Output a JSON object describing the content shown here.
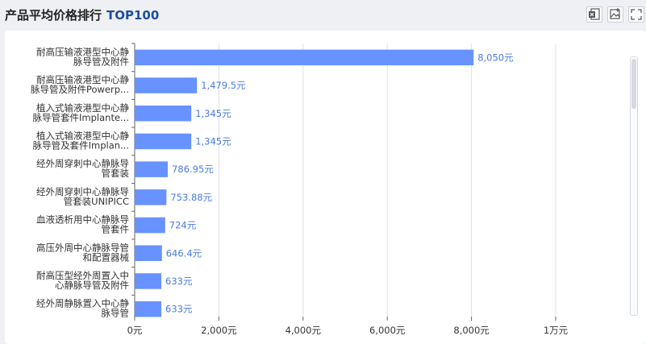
{
  "header": {
    "title": "产品平均价格排行",
    "badge": "TOP100"
  },
  "toolbar": {
    "icons": [
      "excel-export-icon",
      "image-export-icon",
      "fullscreen-icon"
    ]
  },
  "colors": {
    "bar": "#6792ff",
    "value_label": "#4a7be0",
    "grid": "#dde1e8"
  },
  "chart_data": {
    "type": "bar",
    "orientation": "horizontal",
    "title": "产品平均价格排行 TOP100",
    "categories": [
      [
        "耐高压输液港型中心静",
        "脉导管及附件"
      ],
      [
        "耐高压输液港型中心静",
        "脉导管及附件Powerp..."
      ],
      [
        "植入式输液港型中心静",
        "脉导管套件Implante..."
      ],
      [
        "植入式输液港型中心静",
        "脉导管及套件Implan..."
      ],
      [
        "经外周穿刺中心静脉导",
        "管套装"
      ],
      [
        "经外周穿刺中心静脉导",
        "管套装UNIPICC"
      ],
      [
        "血液透析用中心静脉导",
        "管套件"
      ],
      [
        "高压外周中心静脉导管",
        "和配置器械"
      ],
      [
        "耐高压型经外周置入中",
        "心静脉导管及附件"
      ],
      [
        "经外周静脉置入中心静",
        "脉导管"
      ]
    ],
    "values": [
      8050,
      1479.5,
      1345,
      1345,
      786.95,
      753.88,
      724,
      646.4,
      633,
      633
    ],
    "value_labels": [
      "8,050元",
      "1,479.5元",
      "1,345元",
      "1,345元",
      "786.95元",
      "753.88元",
      "724元",
      "646.4元",
      "633元",
      "633元"
    ],
    "x_ticks": [
      0,
      2000,
      4000,
      6000,
      8000,
      10000
    ],
    "x_tick_labels": [
      "0元",
      "2,000元",
      "4,000元",
      "6,000元",
      "8,000元",
      "1万元"
    ],
    "xlim": [
      0,
      10000
    ],
    "grid": true,
    "legend": "none"
  }
}
